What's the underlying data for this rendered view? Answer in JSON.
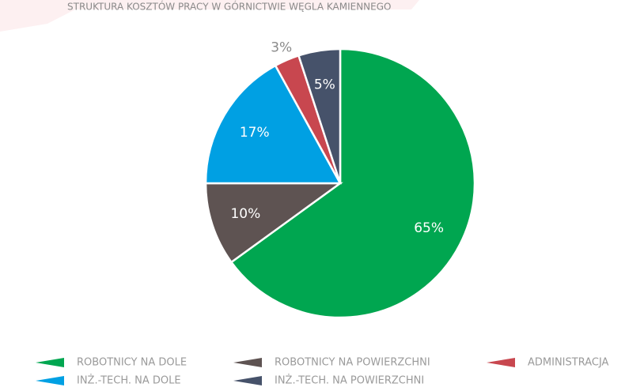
{
  "chart_data": {
    "type": "pie",
    "title": "STRUKTURA KOSZTÓW PRACY W GÓRNICTWIE WĘGLA KAMIENNEGO",
    "categories": [
      "ROBOTNICY NA DOLE",
      "ROBOTNICY NA POWIERZCHNI",
      "INŻ.-TECH. NA DOLE",
      "ADMINISTRACJA",
      "INŻ.-TECH. NA POWIERZCHNI"
    ],
    "values": [
      65,
      10,
      17,
      3,
      5
    ],
    "value_labels": [
      "65%",
      "10%",
      "17%",
      "3%",
      "5%"
    ],
    "colors": [
      "#00a650",
      "#5e5352",
      "#00a0e3",
      "#c8474f",
      "#46526a"
    ]
  }
}
